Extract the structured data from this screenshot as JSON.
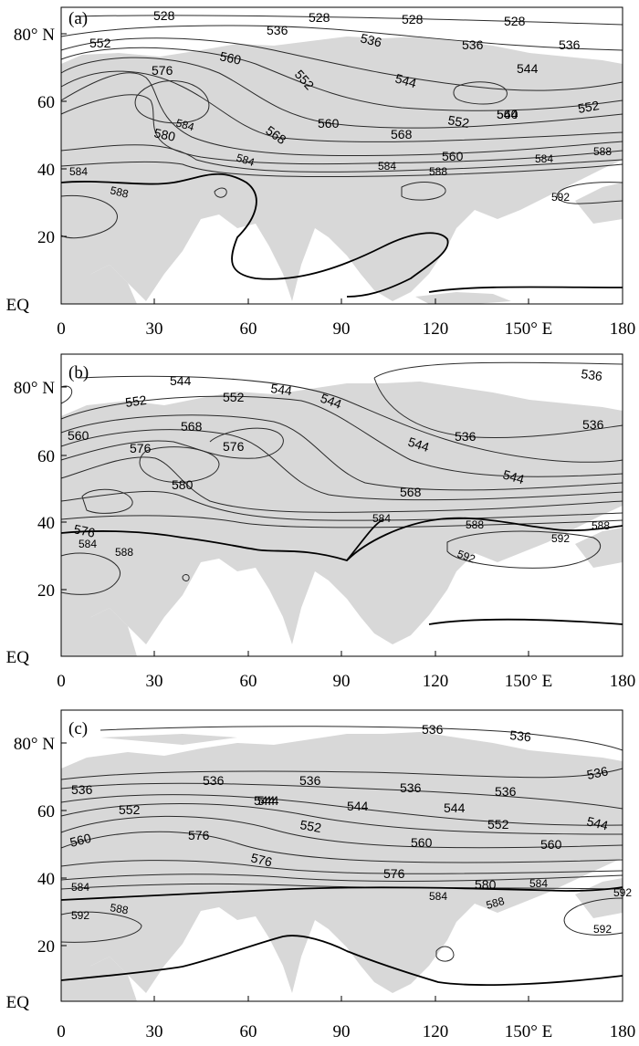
{
  "panels": [
    {
      "label": "(a)",
      "contour_labels": [
        "528",
        "528",
        "528",
        "528",
        "536",
        "536",
        "536",
        "536",
        "544",
        "544",
        "544",
        "552",
        "552",
        "552",
        "552",
        "560",
        "560",
        "560",
        "568",
        "568",
        "576",
        "580",
        "584",
        "584",
        "584",
        "584",
        "584",
        "588",
        "588",
        "588",
        "592"
      ]
    },
    {
      "label": "(b)",
      "contour_labels": [
        "536",
        "536",
        "536",
        "544",
        "544",
        "544",
        "544",
        "544",
        "552",
        "552",
        "560",
        "568",
        "568",
        "576",
        "576",
        "576",
        "580",
        "584",
        "584",
        "588",
        "588",
        "588",
        "592",
        "592"
      ]
    },
    {
      "label": "(c)",
      "contour_labels": [
        "536",
        "536",
        "536",
        "536",
        "536",
        "536",
        "536",
        "544",
        "544",
        "544",
        "544",
        "544",
        "552",
        "552",
        "552",
        "560",
        "560",
        "560",
        "576",
        "576",
        "576",
        "580",
        "584",
        "584",
        "584",
        "588",
        "588",
        "592",
        "592"
      ]
    }
  ],
  "y_axis": {
    "labels": [
      "80° N",
      "60",
      "40",
      "20",
      "EQ"
    ]
  },
  "x_axis": {
    "labels": [
      "0",
      "30",
      "60",
      "90",
      "120",
      "150° E",
      "180"
    ]
  },
  "colors": {
    "land": "#d8d8d8",
    "contour": "#2a2a2a",
    "contour_588": "#000000",
    "background": "#ffffff"
  }
}
